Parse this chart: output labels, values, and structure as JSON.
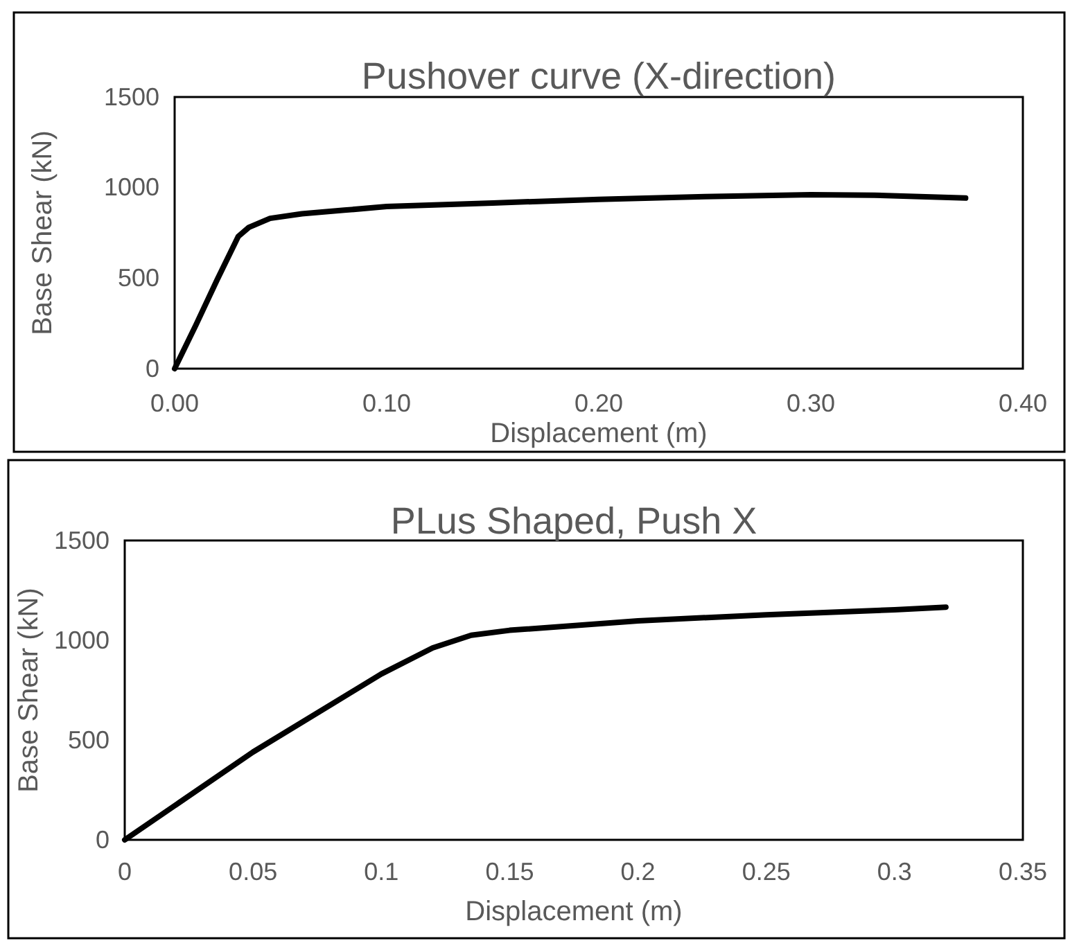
{
  "chart_data": [
    {
      "type": "line",
      "title": "Pushover curve (X-direction)",
      "xlabel": "Displacement (m)",
      "ylabel": "Base Shear (kN)",
      "xlim": [
        0,
        0.4
      ],
      "ylim": [
        0,
        1500
      ],
      "xticks": [
        {
          "value": 0,
          "label": "0.00"
        },
        {
          "value": 0.1,
          "label": "0.10"
        },
        {
          "value": 0.2,
          "label": "0.20"
        },
        {
          "value": 0.3,
          "label": "0.30"
        },
        {
          "value": 0.4,
          "label": "0.40"
        }
      ],
      "yticks": [
        0,
        500,
        1000,
        1500
      ],
      "grid": false,
      "marker": "none",
      "line_style": "solid",
      "series": [
        {
          "color": "#000000",
          "x": [
            0,
            0.01,
            0.02,
            0.03,
            0.035,
            0.045,
            0.06,
            0.08,
            0.1,
            0.15,
            0.2,
            0.25,
            0.3,
            0.33,
            0.373
          ],
          "values": [
            0,
            240,
            490,
            730,
            780,
            830,
            855,
            875,
            895,
            915,
            935,
            950,
            960,
            958,
            942
          ]
        }
      ]
    },
    {
      "type": "line",
      "title": "PLus Shaped, Push X",
      "xlabel": "Displacement (m)",
      "ylabel": "Base Shear (kN)",
      "xlim": [
        0,
        0.35
      ],
      "ylim": [
        0,
        1500
      ],
      "xticks": [
        0,
        0.05,
        0.1,
        0.15,
        0.2,
        0.25,
        0.3,
        0.35
      ],
      "yticks": [
        0,
        500,
        1000,
        1500
      ],
      "grid": false,
      "marker": "none",
      "line_style": "solid",
      "series": [
        {
          "color": "#000000",
          "x": [
            0,
            0.05,
            0.1,
            0.12,
            0.135,
            0.15,
            0.2,
            0.25,
            0.3,
            0.32
          ],
          "values": [
            0,
            440,
            831,
            962,
            1025,
            1050,
            1097,
            1128,
            1153,
            1166
          ]
        }
      ]
    }
  ]
}
